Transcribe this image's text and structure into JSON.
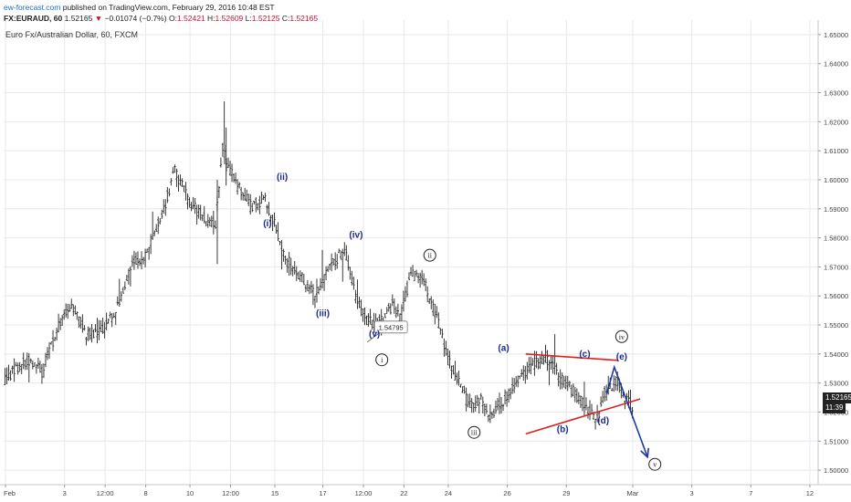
{
  "header": {
    "site": "ew-forecast.com",
    "published": " published on TradingView.com, February 29, 2016 10:48 EST",
    "symbol": "FX:EURAUD, 60",
    "last": "1.52165",
    "down_arrow": "▼",
    "change": "−0.01074 (−0.7%)",
    "o_label": "O:",
    "o_value": "1.52421",
    "h_label": "H:",
    "h_value": "1.52609",
    "l_label": "L:",
    "l_value": "1.52125",
    "c_label": "C:",
    "c_value": "1.52165"
  },
  "subtitle": "Euro Fx/Australian Dollar, 60, FXCM",
  "price_tag": "1.52165",
  "time_tag": "11:39",
  "colors": {
    "bars": "#222222",
    "wave_labels": "#1a2a8c",
    "trendlines": "#e0201b",
    "projection": "#1a3aa0",
    "grid": "#e8e8ee",
    "axis_text": "#444444"
  },
  "chart_data": {
    "type": "ohlc",
    "symbol": "FX:EURAUD",
    "interval": "60",
    "yaxis": {
      "position": "right",
      "ylim": [
        1.495,
        1.655
      ],
      "ticks": [
        "1.50000",
        "1.51000",
        "1.52000",
        "1.53000",
        "1.54000",
        "1.55000",
        "1.56000",
        "1.57000",
        "1.58000",
        "1.59000",
        "1.60000",
        "1.61000",
        "1.62000",
        "1.63000",
        "1.64000",
        "1.65000"
      ]
    },
    "xaxis": {
      "ticks": [
        "Feb",
        "3",
        "12:00",
        "8",
        "10",
        "12:00",
        "15",
        "17",
        "12:00",
        "22",
        "24",
        "26",
        "29",
        "Mar",
        "3",
        "7",
        "12"
      ],
      "tick_index": [
        0,
        16,
        27,
        38,
        50,
        61,
        73,
        86,
        97,
        108,
        120,
        136,
        152,
        170,
        186,
        202,
        218
      ]
    },
    "price_path": [
      {
        "i": 0,
        "v": 1.531
      },
      {
        "i": 6,
        "v": 1.538
      },
      {
        "i": 10,
        "v": 1.534
      },
      {
        "i": 14,
        "v": 1.548
      },
      {
        "i": 18,
        "v": 1.557
      },
      {
        "i": 22,
        "v": 1.547
      },
      {
        "i": 26,
        "v": 1.548
      },
      {
        "i": 30,
        "v": 1.554
      },
      {
        "i": 34,
        "v": 1.57
      },
      {
        "i": 38,
        "v": 1.574
      },
      {
        "i": 42,
        "v": 1.586
      },
      {
        "i": 46,
        "v": 1.603
      },
      {
        "i": 50,
        "v": 1.592
      },
      {
        "i": 54,
        "v": 1.587
      },
      {
        "i": 57,
        "v": 1.585
      },
      {
        "i": 59,
        "v": 1.611
      },
      {
        "i": 62,
        "v": 1.6
      },
      {
        "i": 64,
        "v": 1.596
      },
      {
        "i": 67,
        "v": 1.59
      },
      {
        "i": 70,
        "v": 1.594
      },
      {
        "i": 73,
        "v": 1.585
      },
      {
        "i": 76,
        "v": 1.573
      },
      {
        "i": 80,
        "v": 1.567
      },
      {
        "i": 84,
        "v": 1.56
      },
      {
        "i": 87,
        "v": 1.567
      },
      {
        "i": 90,
        "v": 1.573
      },
      {
        "i": 92,
        "v": 1.576
      },
      {
        "i": 95,
        "v": 1.56
      },
      {
        "i": 98,
        "v": 1.551
      },
      {
        "i": 102,
        "v": 1.551
      },
      {
        "i": 105,
        "v": 1.557
      },
      {
        "i": 107,
        "v": 1.553
      },
      {
        "i": 110,
        "v": 1.567
      },
      {
        "i": 113,
        "v": 1.567
      },
      {
        "i": 116,
        "v": 1.556
      },
      {
        "i": 118,
        "v": 1.548
      },
      {
        "i": 121,
        "v": 1.535
      },
      {
        "i": 124,
        "v": 1.527
      },
      {
        "i": 126,
        "v": 1.522
      },
      {
        "i": 129,
        "v": 1.524
      },
      {
        "i": 132,
        "v": 1.518
      },
      {
        "i": 136,
        "v": 1.526
      },
      {
        "i": 140,
        "v": 1.533
      },
      {
        "i": 144,
        "v": 1.537
      },
      {
        "i": 147,
        "v": 1.539
      },
      {
        "i": 150,
        "v": 1.533
      },
      {
        "i": 154,
        "v": 1.527
      },
      {
        "i": 158,
        "v": 1.521
      },
      {
        "i": 160,
        "v": 1.517
      },
      {
        "i": 163,
        "v": 1.528
      },
      {
        "i": 166,
        "v": 1.531
      },
      {
        "i": 168,
        "v": 1.525
      },
      {
        "i": 170,
        "v": 1.522
      }
    ],
    "last_price": 1.52165,
    "callout": {
      "text": "1.54795",
      "i": 101,
      "v": 1.5485
    },
    "wave_labels": [
      {
        "text": "(i)",
        "i": 71,
        "v": 1.584
      },
      {
        "text": "(ii)",
        "i": 75,
        "v": 1.6
      },
      {
        "text": "(iii)",
        "i": 86,
        "v": 1.553
      },
      {
        "text": "(iv)",
        "i": 95,
        "v": 1.58
      },
      {
        "text": "(v)",
        "i": 100,
        "v": 1.546
      },
      {
        "text": "(a)",
        "i": 135,
        "v": 1.541
      },
      {
        "text": "(b)",
        "i": 151,
        "v": 1.513
      },
      {
        "text": "(c)",
        "i": 157,
        "v": 1.539
      },
      {
        "text": "(d)",
        "i": 162,
        "v": 1.516
      },
      {
        "text": "(e)",
        "i": 167,
        "v": 1.538
      }
    ],
    "circled_labels": [
      {
        "text": "i",
        "i": 102,
        "v": 1.538
      },
      {
        "text": "ii",
        "i": 115,
        "v": 1.574
      },
      {
        "text": "iii",
        "i": 127,
        "v": 1.513
      },
      {
        "text": "iv",
        "i": 167,
        "v": 1.546
      },
      {
        "text": "v",
        "i": 176,
        "v": 1.502
      }
    ],
    "trendlines": [
      {
        "from": {
          "i": 141,
          "v": 1.54
        },
        "to": {
          "i": 166,
          "v": 1.5378
        }
      },
      {
        "from": {
          "i": 141,
          "v": 1.5125
        },
        "to": {
          "i": 172,
          "v": 1.5245
        }
      }
    ],
    "projection": [
      {
        "i": 163,
        "v": 1.5265
      },
      {
        "i": 165,
        "v": 1.5355
      },
      {
        "i": 174,
        "v": 1.5045
      }
    ]
  }
}
